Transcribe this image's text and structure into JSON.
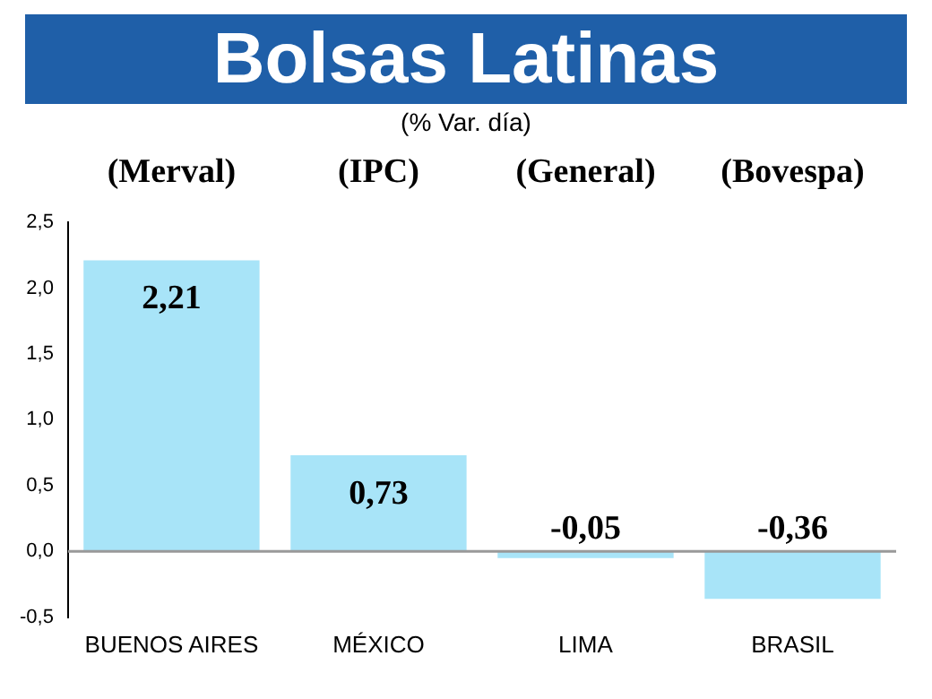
{
  "chart_data": {
    "type": "bar",
    "title": "Bolsas Latinas",
    "subtitle": "(% Var. día)",
    "categories": [
      "BUENOS AIRES",
      "MÉXICO",
      "LIMA",
      "BRASIL"
    ],
    "values": [
      2.21,
      0.73,
      -0.05,
      -0.36
    ],
    "value_labels": [
      "2,21",
      "0,73",
      "-0,05",
      "-0,36"
    ],
    "color": "#a8e4f8",
    "ylim": [
      -0.5,
      2.5
    ],
    "yticks": [
      {
        "value": -0.5,
        "label": "-0,5"
      },
      {
        "value": 0,
        "label": "0,0"
      },
      {
        "value": 0.5,
        "label": "0,5"
      },
      {
        "value": 1,
        "label": "1,0"
      },
      {
        "value": 1.5,
        "label": "1,5"
      },
      {
        "value": 2,
        "label": "2,0"
      },
      {
        "value": 2.5,
        "label": "2,5"
      }
    ],
    "ref_lines": [
      {
        "axis": "y",
        "value": 0,
        "color": "#999999"
      }
    ],
    "annotations": [
      "(Merval)",
      "(IPC)",
      "(General)",
      "(Bovespa)"
    ],
    "grid": false,
    "legend": false
  }
}
